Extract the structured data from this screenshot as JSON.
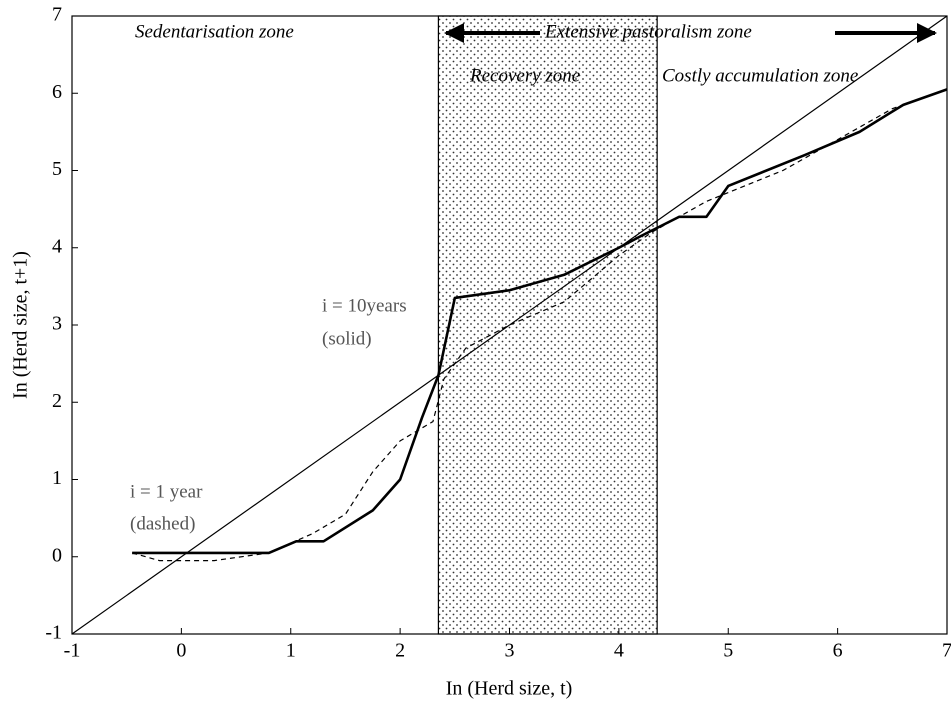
{
  "chart_data": {
    "type": "line",
    "xlabel": "In (Herd size, t)",
    "ylabel": "In (Herd size, t+1)",
    "xlim": [
      -1,
      7
    ],
    "ylim": [
      -1,
      7
    ],
    "xticks": [
      -1,
      0,
      1,
      2,
      3,
      4,
      5,
      6,
      7
    ],
    "yticks": [
      -1,
      0,
      1,
      2,
      3,
      4,
      5,
      6,
      7
    ],
    "region": {
      "x0": 2.35,
      "x1": 4.35
    },
    "annotations": [
      "Sedentarisation zone",
      "Extensive pastoralism zone",
      "Recovery zone",
      "Costly accumulation zone",
      "i = 10years",
      "(solid)",
      "i = 1 year",
      "(dashed)"
    ],
    "series": [
      {
        "color": "#000",
        "style": "solid",
        "width": 2.6,
        "x": [
          -0.45,
          0.8,
          1.05,
          1.3,
          1.75,
          2.0,
          2.2,
          2.35,
          2.5,
          3.0,
          3.5,
          4.0,
          4.2,
          4.55,
          4.8,
          5.0,
          5.7,
          6.2,
          6.6,
          7.0
        ],
        "values": [
          0.05,
          0.05,
          0.2,
          0.2,
          0.6,
          1.0,
          1.8,
          2.35,
          3.35,
          3.45,
          3.65,
          4.0,
          4.15,
          4.4,
          4.4,
          4.8,
          5.2,
          5.5,
          5.85,
          6.05
        ]
      },
      {
        "color": "#000",
        "style": "dashed",
        "width": 1.2,
        "x": [
          -0.45,
          -0.2,
          0.3,
          0.8,
          1.2,
          1.5,
          1.75,
          2.0,
          2.3,
          2.4,
          2.6,
          3.0,
          3.5,
          4.0,
          4.3,
          4.8,
          5.5,
          6.0,
          6.5,
          7.0
        ],
        "values": [
          0.05,
          -0.05,
          -0.05,
          0.05,
          0.3,
          0.55,
          1.1,
          1.5,
          1.75,
          2.3,
          2.7,
          3.0,
          3.3,
          3.9,
          4.2,
          4.6,
          5.0,
          5.4,
          5.8,
          6.05
        ]
      },
      {
        "color": "#000",
        "style": "solid",
        "width": 1.2,
        "x": [
          -1,
          7
        ],
        "values": [
          -1,
          7
        ]
      }
    ]
  }
}
